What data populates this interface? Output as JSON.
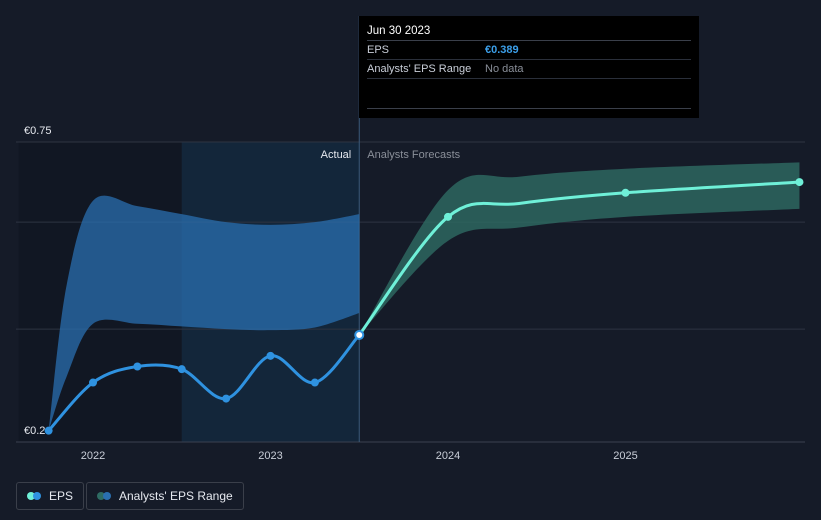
{
  "chart_data": {
    "type": "line",
    "y_top_label": "€0.75",
    "y_bottom_label": "€0.2",
    "ylim": [
      0.2,
      0.75
    ],
    "xlim": [
      2021.75,
      2025.98
    ],
    "x_ticks": [
      {
        "value": 2022,
        "label": "2022"
      },
      {
        "value": 2023,
        "label": "2023"
      },
      {
        "value": 2024,
        "label": "2024"
      },
      {
        "value": 2025,
        "label": "2025"
      }
    ],
    "divider_x": 2023.5,
    "actual_label": "Actual",
    "forecast_label": "Analysts Forecasts",
    "eps_actual": [
      {
        "x": 2021.75,
        "y": 0.21
      },
      {
        "x": 2022.0,
        "y": 0.3
      },
      {
        "x": 2022.25,
        "y": 0.33
      },
      {
        "x": 2022.5,
        "y": 0.325
      },
      {
        "x": 2022.75,
        "y": 0.27
      },
      {
        "x": 2023.0,
        "y": 0.35
      },
      {
        "x": 2023.25,
        "y": 0.3
      },
      {
        "x": 2023.5,
        "y": 0.389
      }
    ],
    "eps_forecast": [
      {
        "x": 2023.5,
        "y": 0.389
      },
      {
        "x": 2024.0,
        "y": 0.61
      },
      {
        "x": 2024.4,
        "y": 0.635
      },
      {
        "x": 2025.0,
        "y": 0.655
      },
      {
        "x": 2025.98,
        "y": 0.675
      }
    ],
    "eps_forecast_markers": [
      2024.0,
      2025.0,
      2025.98
    ],
    "historic_range": {
      "x": [
        2021.75,
        2021.85,
        2022.0,
        2022.25,
        2022.5,
        2022.75,
        2023.0,
        2023.25,
        2023.5
      ],
      "high": [
        0.21,
        0.48,
        0.64,
        0.63,
        0.615,
        0.6,
        0.595,
        0.6,
        0.615
      ],
      "low": [
        0.21,
        0.31,
        0.41,
        0.41,
        0.405,
        0.4,
        0.398,
        0.403,
        0.43
      ]
    },
    "forecast_range": {
      "x": [
        2023.5,
        2024.0,
        2024.4,
        2025.0,
        2025.98
      ],
      "high": [
        0.389,
        0.66,
        0.685,
        0.7,
        0.712
      ],
      "low": [
        0.389,
        0.565,
        0.59,
        0.61,
        0.625
      ]
    }
  },
  "tooltip": {
    "date": "Jun 30 2023",
    "rows": [
      {
        "key": "EPS",
        "value": "€0.389"
      },
      {
        "key": "Analysts' EPS Range",
        "value": "No data"
      }
    ]
  },
  "legend": {
    "eps_label": "EPS",
    "range_label": "Analysts' EPS Range"
  },
  "colors": {
    "background": "#151b28",
    "eps_actual": "#2f92e0",
    "eps_forecast": "#6ff0d8",
    "range_actual": "#2a6fb0",
    "range_forecast": "#2e6b63",
    "grid": "#2e3442"
  }
}
